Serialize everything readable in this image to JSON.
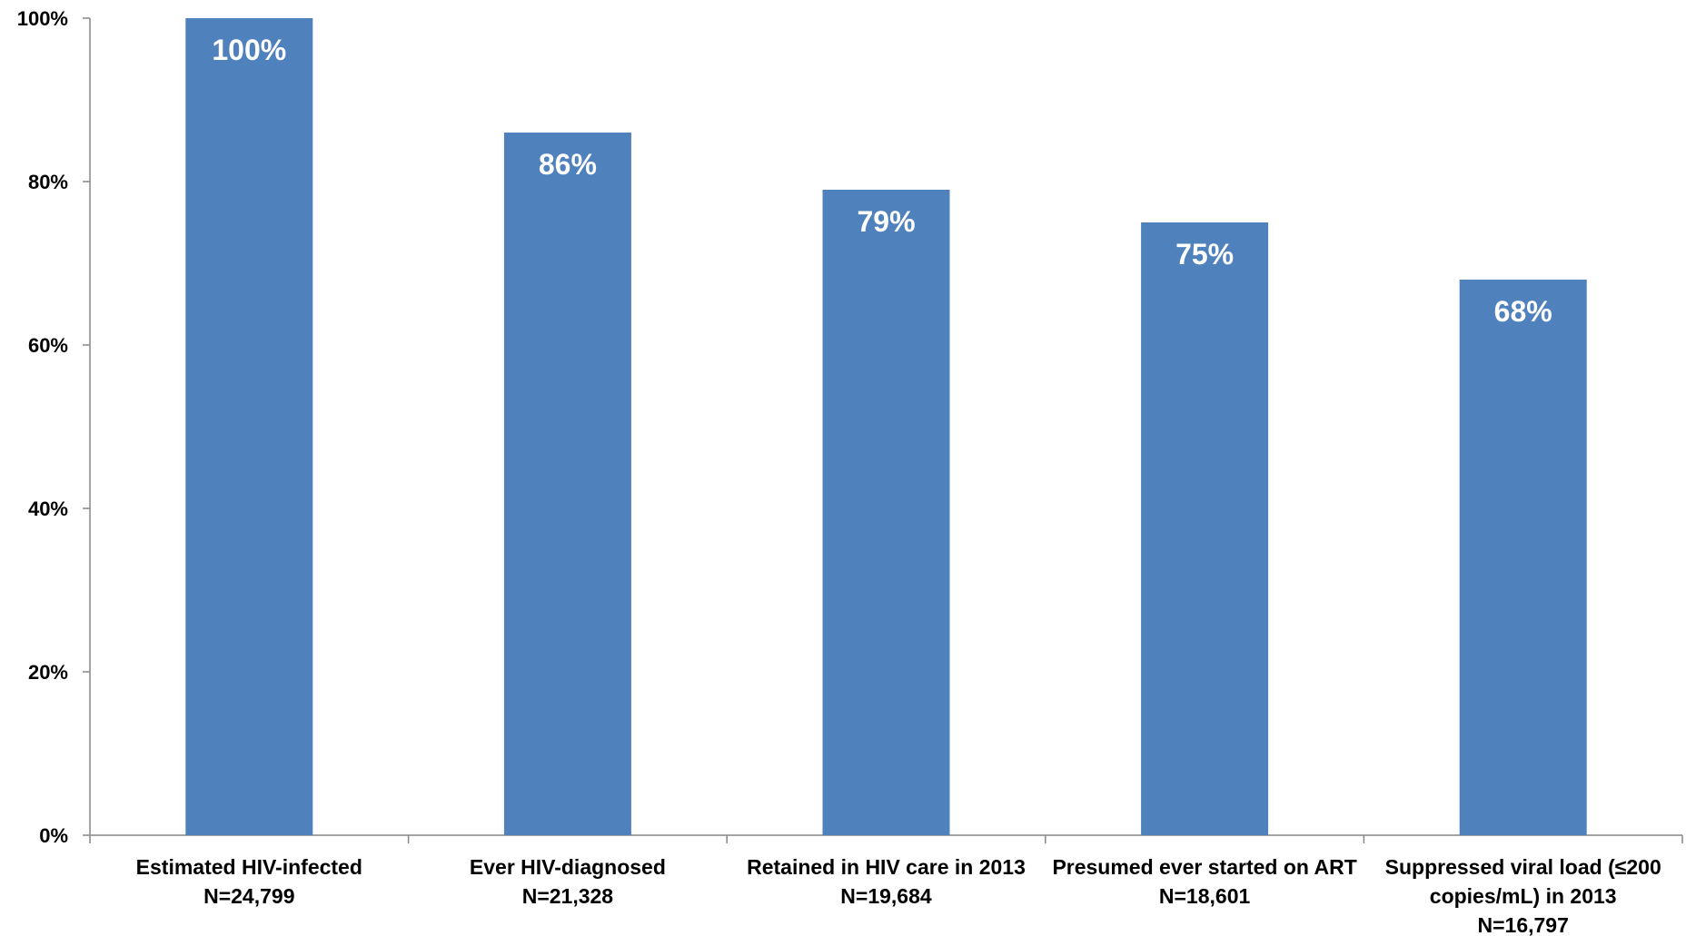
{
  "chart_data": {
    "type": "bar",
    "categories": [
      [
        "Estimated HIV-infected",
        "N=24,799"
      ],
      [
        "Ever HIV-diagnosed",
        "N=21,328"
      ],
      [
        "Retained in HIV care in 2013",
        "N=19,684"
      ],
      [
        "Presumed ever started on ART",
        "N=18,601"
      ],
      [
        "Suppressed viral load (≤200",
        "copies/mL) in 2013",
        "N=16,797"
      ]
    ],
    "values": [
      100,
      86,
      79,
      75,
      68
    ],
    "data_labels": [
      "100%",
      "86%",
      "79%",
      "75%",
      "68%"
    ],
    "ylim": [
      0,
      100
    ],
    "yticks": [
      0,
      20,
      40,
      60,
      80,
      100
    ],
    "ytick_labels": [
      "0%",
      "20%",
      "40%",
      "60%",
      "80%",
      "100%"
    ],
    "title": "",
    "xlabel": "",
    "ylabel": "",
    "grid": false,
    "bar_color": "#4F81BD",
    "axis_color": "#868686"
  }
}
